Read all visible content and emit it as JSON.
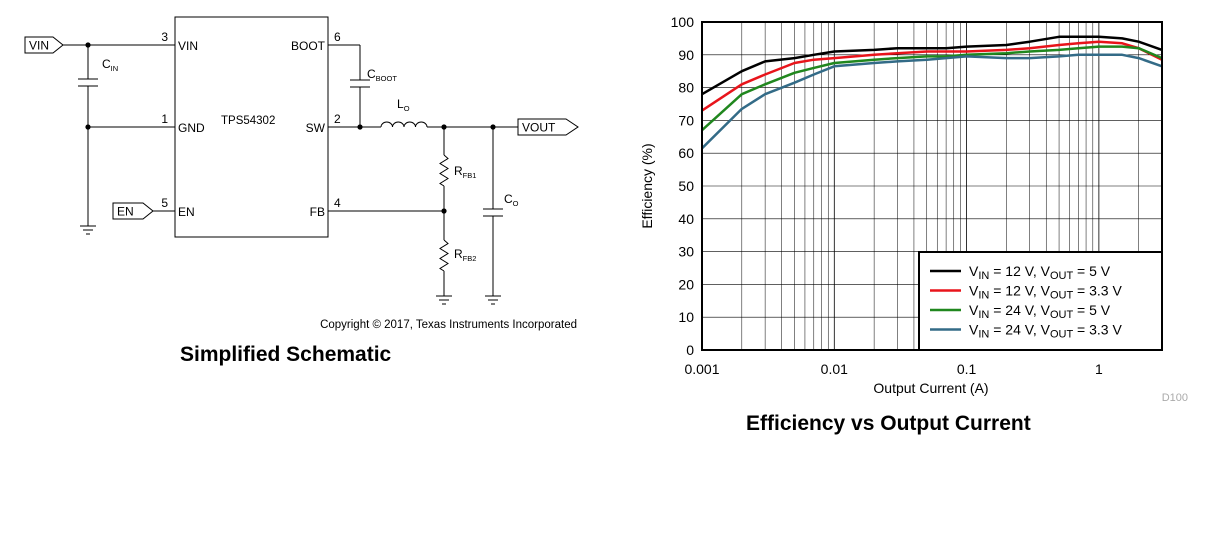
{
  "schematic": {
    "chip": "TPS54302",
    "pins": {
      "vin": {
        "num": "3",
        "name": "VIN"
      },
      "gnd": {
        "num": "1",
        "name": "GND"
      },
      "en": {
        "num": "5",
        "name": "EN"
      },
      "boot": {
        "num": "6",
        "name": "BOOT"
      },
      "sw": {
        "num": "2",
        "name": "SW"
      },
      "fb": {
        "num": "4",
        "name": "FB"
      }
    },
    "ports": {
      "vin": "VIN",
      "en": "EN",
      "vout": "VOUT"
    },
    "components": {
      "cin": {
        "main": "C",
        "sub": "IN"
      },
      "cboot": {
        "main": "C",
        "sub": "BOOT"
      },
      "lo": {
        "main": "L",
        "sub": "O"
      },
      "rfb1": {
        "main": "R",
        "sub": "FB1"
      },
      "rfb2": {
        "main": "R",
        "sub": "FB2"
      },
      "co": {
        "main": "C",
        "sub": "O"
      }
    },
    "copyright": "Copyright © 2017, Texas Instruments Incorporated",
    "caption": "Simplified Schematic"
  },
  "chart_data": {
    "type": "line",
    "title": "Efficiency vs Output Current",
    "xlabel": "Output Current (A)",
    "ylabel": "Efficiency (%)",
    "xscale": "log",
    "xlim": [
      0.001,
      3
    ],
    "ylim": [
      0,
      100
    ],
    "xticks": [
      0.001,
      0.01,
      0.1,
      1
    ],
    "xtick_labels": [
      "0.001",
      "0.01",
      "0.1",
      "1"
    ],
    "yticks": [
      0,
      10,
      20,
      30,
      40,
      50,
      60,
      70,
      80,
      90,
      100
    ],
    "grid": true,
    "legend_position": "bottom-right",
    "watermark": "D100",
    "x": [
      0.001,
      0.002,
      0.003,
      0.005,
      0.007,
      0.01,
      0.02,
      0.03,
      0.05,
      0.07,
      0.1,
      0.2,
      0.3,
      0.5,
      0.7,
      1,
      1.5,
      2,
      3
    ],
    "series": [
      {
        "label": {
          "a": "V",
          "as": "IN",
          "b": " = 12 V, V",
          "bs": "OUT",
          "c": " = 5 V"
        },
        "color": "#000000",
        "values": [
          78,
          85,
          88,
          89,
          90,
          91,
          91.5,
          92,
          92,
          92,
          92.5,
          93,
          94,
          95.5,
          95.5,
          95.5,
          95,
          94,
          91.5
        ]
      },
      {
        "label": {
          "a": "V",
          "as": "IN",
          "b": " = 12 V, V",
          "bs": "OUT",
          "c": " = 3.3 V"
        },
        "color": "#e8141b",
        "values": [
          73,
          81,
          84,
          87.5,
          88.5,
          89,
          90,
          90.5,
          91,
          91,
          91,
          91.5,
          92,
          93,
          93.5,
          94,
          93.5,
          92,
          88.5
        ]
      },
      {
        "label": {
          "a": "V",
          "as": "IN",
          "b": " = 24 V, V",
          "bs": "OUT",
          "c": " = 5 V"
        },
        "color": "#20871e",
        "values": [
          67,
          78,
          81,
          84.5,
          86,
          87.5,
          88.5,
          89,
          89.5,
          89.5,
          90,
          90.5,
          91,
          91.5,
          92,
          92.5,
          92.5,
          92,
          89
        ]
      },
      {
        "label": {
          "a": "V",
          "as": "IN",
          "b": " = 24 V, V",
          "bs": "OUT",
          "c": " = 3.3 V"
        },
        "color": "#336b87",
        "values": [
          61.5,
          73.5,
          78,
          81.5,
          84,
          86.5,
          87.5,
          88,
          88.5,
          89,
          89.5,
          89,
          89,
          89.5,
          90,
          90,
          90,
          89,
          86.5
        ]
      }
    ]
  }
}
